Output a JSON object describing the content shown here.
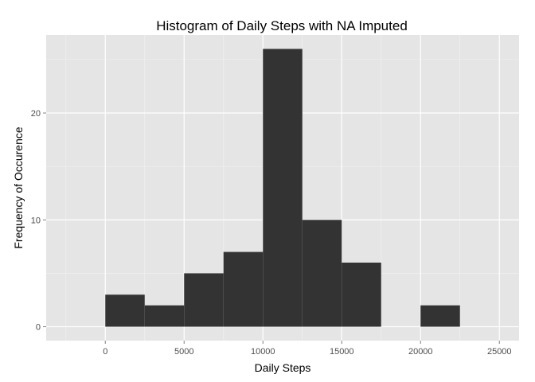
{
  "chart_data": {
    "type": "bar",
    "title": "Histogram of Daily Steps with NA Imputed",
    "xlabel": "Daily Steps",
    "ylabel": "Frequency of Occurence",
    "xlim": [
      -3750,
      26250
    ],
    "ylim": [
      -1.3,
      27.3
    ],
    "bin_width": 2500,
    "bins": [
      {
        "x_start": 0,
        "x_end": 2500,
        "value": 3
      },
      {
        "x_start": 2500,
        "x_end": 5000,
        "value": 2
      },
      {
        "x_start": 5000,
        "x_end": 7500,
        "value": 5
      },
      {
        "x_start": 7500,
        "x_end": 10000,
        "value": 7
      },
      {
        "x_start": 10000,
        "x_end": 12500,
        "value": 26
      },
      {
        "x_start": 12500,
        "x_end": 15000,
        "value": 10
      },
      {
        "x_start": 15000,
        "x_end": 17500,
        "value": 6
      },
      {
        "x_start": 17500,
        "x_end": 20000,
        "value": 0
      },
      {
        "x_start": 20000,
        "x_end": 22500,
        "value": 2
      }
    ],
    "x_ticks": [
      0,
      5000,
      10000,
      15000,
      20000,
      25000
    ],
    "x_tick_labels": [
      "0",
      "5000",
      "10000",
      "15000",
      "20000",
      "25000"
    ],
    "y_ticks": [
      0,
      10,
      20
    ],
    "y_tick_labels": [
      "0",
      "10",
      "20"
    ],
    "grid": true,
    "colors": {
      "panel_background": "#e5e5e5",
      "grid_major": "#ffffff",
      "grid_minor": "#f2f2f2",
      "bar_fill": "#333333",
      "tick_mark": "#7f7f7f"
    }
  }
}
